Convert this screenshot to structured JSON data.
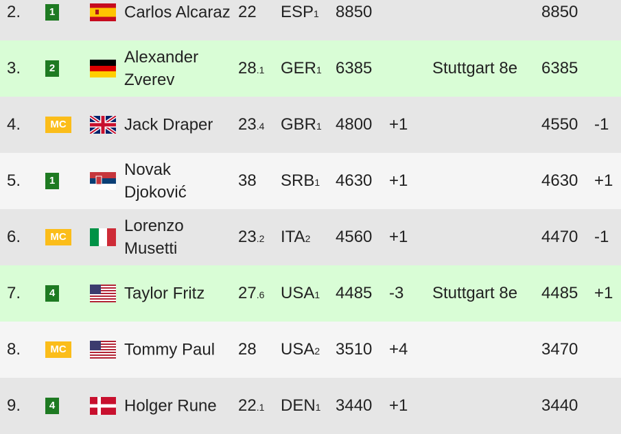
{
  "colors": {
    "gray": "#e6e6e6",
    "green": "#d9fdd6",
    "light": "#f5f5f5",
    "badge_green": "#1e7a22",
    "badge_mc": "#fbbd1a"
  },
  "rows": [
    {
      "rank": "2.",
      "badge": "1",
      "flag": "ESP",
      "name": "Carlos Alcaraz",
      "age": "22",
      "age_sub": "",
      "country": "ESP",
      "country_sub": "1",
      "points": "8850",
      "change": "",
      "tournament": "",
      "next_points": "8850",
      "next_change": "",
      "bg": "gray"
    },
    {
      "rank": "3.",
      "badge": "2",
      "flag": "GER",
      "name": "Alexander Zverev",
      "age": "28",
      "age_sub": ".1",
      "country": "GER",
      "country_sub": "1",
      "points": "6385",
      "change": "",
      "tournament": "Stuttgart 8e",
      "next_points": "6385",
      "next_change": "",
      "bg": "green"
    },
    {
      "rank": "4.",
      "badge": "MC",
      "flag": "GBR",
      "name": "Jack Draper",
      "age": "23",
      "age_sub": ".4",
      "country": "GBR",
      "country_sub": "1",
      "points": "4800",
      "change": "+1",
      "tournament": "",
      "next_points": "4550",
      "next_change": "-1",
      "bg": "gray"
    },
    {
      "rank": "5.",
      "badge": "1",
      "flag": "SRB",
      "name": "Novak Djoković",
      "age": "38",
      "age_sub": "",
      "country": "SRB",
      "country_sub": "1",
      "points": "4630",
      "change": "+1",
      "tournament": "",
      "next_points": "4630",
      "next_change": "+1",
      "bg": "light"
    },
    {
      "rank": "6.",
      "badge": "MC",
      "flag": "ITA",
      "name": "Lorenzo Musetti",
      "age": "23",
      "age_sub": ".2",
      "country": "ITA",
      "country_sub": "2",
      "points": "4560",
      "change": "+1",
      "tournament": "",
      "next_points": "4470",
      "next_change": "-1",
      "bg": "gray"
    },
    {
      "rank": "7.",
      "badge": "4",
      "flag": "USA",
      "name": "Taylor Fritz",
      "age": "27",
      "age_sub": ".6",
      "country": "USA",
      "country_sub": "1",
      "points": "4485",
      "change": "-3",
      "tournament": "Stuttgart 8e",
      "next_points": "4485",
      "next_change": "+1",
      "bg": "green"
    },
    {
      "rank": "8.",
      "badge": "MC",
      "flag": "USA",
      "name": "Tommy Paul",
      "age": "28",
      "age_sub": "",
      "country": "USA",
      "country_sub": "2",
      "points": "3510",
      "change": "+4",
      "tournament": "",
      "next_points": "3470",
      "next_change": "",
      "bg": "light"
    },
    {
      "rank": "9.",
      "badge": "4",
      "flag": "DEN",
      "name": "Holger Rune",
      "age": "22",
      "age_sub": ".1",
      "country": "DEN",
      "country_sub": "1",
      "points": "3440",
      "change": "+1",
      "tournament": "",
      "next_points": "3440",
      "next_change": "",
      "bg": "gray"
    }
  ]
}
